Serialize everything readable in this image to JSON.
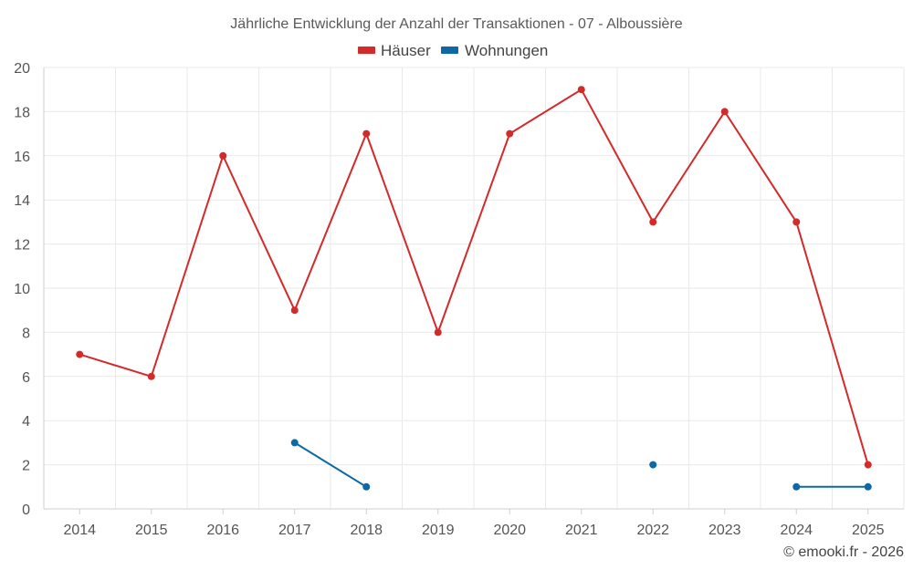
{
  "chart_data": {
    "type": "line",
    "title": "Jährliche Entwicklung der Anzahl der Transaktionen - 07 - Alboussière",
    "xlabel": "",
    "ylabel": "",
    "categories": [
      "2014",
      "2015",
      "2016",
      "2017",
      "2018",
      "2019",
      "2020",
      "2021",
      "2022",
      "2023",
      "2024",
      "2025"
    ],
    "ylim": [
      0,
      20
    ],
    "yticks": [
      0,
      2,
      4,
      6,
      8,
      10,
      12,
      14,
      16,
      18,
      20
    ],
    "grid": true,
    "legend_position": "top-center",
    "series": [
      {
        "name": "Häuser",
        "color": "#d42a2a",
        "values": [
          7,
          6,
          16,
          9,
          17,
          8,
          17,
          19,
          13,
          18,
          13,
          2
        ]
      },
      {
        "name": "Wohnungen",
        "color": "#0d68a5",
        "values": [
          null,
          null,
          null,
          3,
          1,
          null,
          null,
          null,
          2,
          null,
          1,
          1
        ]
      }
    ]
  },
  "credit": "© emooki.fr - 2026"
}
